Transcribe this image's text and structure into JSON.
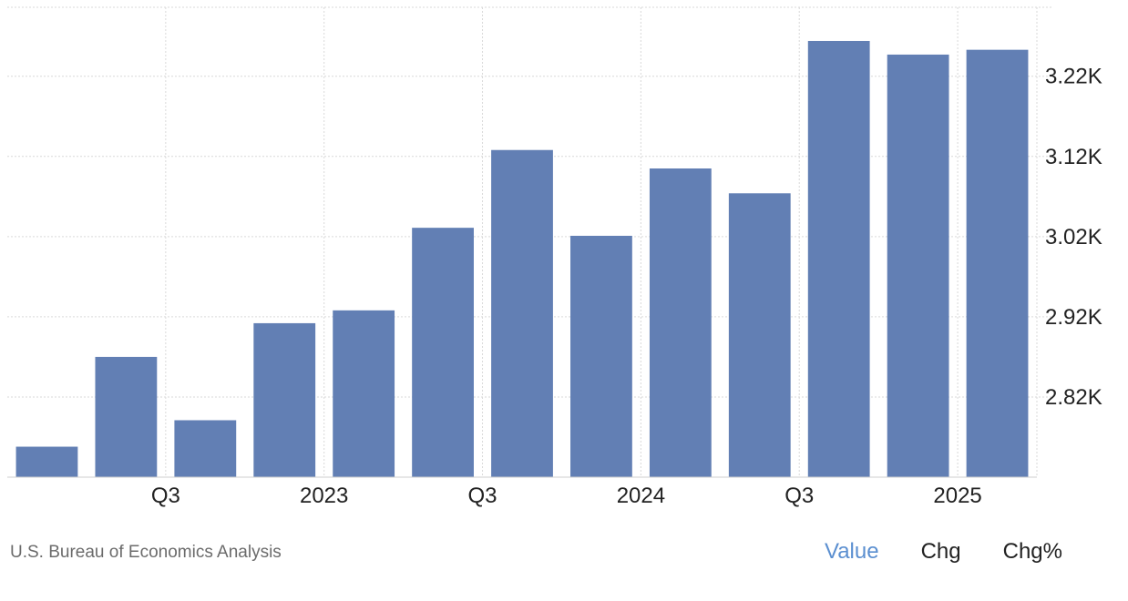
{
  "source_text": "U.S. Bureau of Economics Analysis",
  "tabs": [
    {
      "label": "Value",
      "active": true
    },
    {
      "label": "Chg",
      "active": false
    },
    {
      "label": "Chg%",
      "active": false
    }
  ],
  "colors": {
    "bar": "#627fb4",
    "active_tab": "#5b8fd0",
    "grid": "#d9d9d9"
  },
  "chart_data": {
    "type": "bar",
    "title": "",
    "xlabel": "",
    "ylabel": "",
    "categories": [
      "2022 Q1",
      "2022 Q2",
      "2022 Q3",
      "2022 Q4",
      "2023 Q1",
      "2023 Q2",
      "2023 Q3",
      "2023 Q4",
      "2024 Q1",
      "2024 Q2",
      "2024 Q3",
      "2024 Q4",
      "2025 Q1"
    ],
    "values": [
      2.758,
      2.87,
      2.791,
      2.912,
      2.928,
      3.031,
      3.128,
      3.021,
      3.105,
      3.074,
      3.264,
      3.247,
      3.253
    ],
    "x_tick_labels": [
      "Q3",
      "2023",
      "Q3",
      "2024",
      "Q3",
      "2025"
    ],
    "x_tick_positions": [
      1.5,
      3.5,
      5.5,
      7.5,
      9.5,
      11.5
    ],
    "y_ticks": [
      2.82,
      2.92,
      3.02,
      3.12,
      3.22
    ],
    "y_tick_labels": [
      "2.82K",
      "2.92K",
      "3.02K",
      "3.12K",
      "3.22K"
    ],
    "ylim": [
      2.72,
      3.306
    ],
    "y_axis_position": "right",
    "grid": true
  }
}
